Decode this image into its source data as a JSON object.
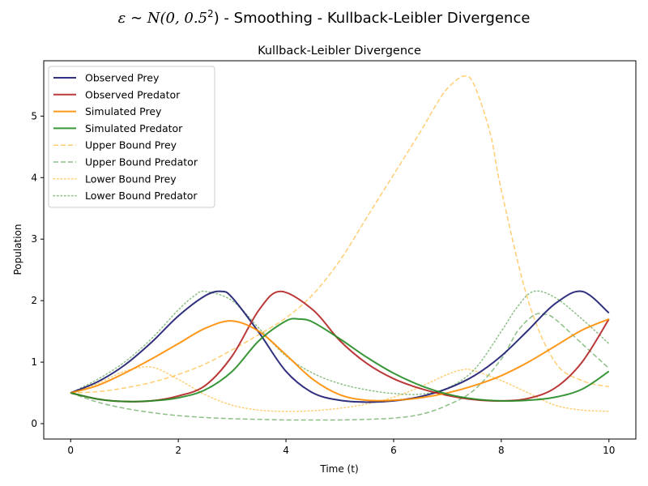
{
  "figure": {
    "suptitle_math": "ε ∼ N(0, 0.5",
    "suptitle_sup": "2",
    "suptitle_rest": ") - Smoothing - Kullback-Leibler Divergence"
  },
  "chart_data": {
    "type": "line",
    "title": "Kullback-Leibler Divergence",
    "xlabel": "Time (t)",
    "ylabel": "Population",
    "xlim": [
      -0.5,
      10.5
    ],
    "ylim": [
      -0.25,
      5.9
    ],
    "xticks": [
      0,
      2,
      4,
      6,
      8,
      10
    ],
    "yticks": [
      0,
      1,
      2,
      3,
      4,
      5
    ],
    "grid": false,
    "legend_position": "upper-left",
    "series": [
      {
        "name": "Observed Prey",
        "color": "#191970",
        "dash": "solid",
        "width": 2,
        "x": [
          0,
          0.5,
          1,
          1.5,
          2,
          2.5,
          2.8,
          3,
          3.5,
          4,
          4.5,
          5,
          5.5,
          6,
          6.5,
          7,
          7.5,
          8,
          8.5,
          9,
          9.5,
          10
        ],
        "y": [
          0.5,
          0.68,
          0.95,
          1.32,
          1.75,
          2.08,
          2.15,
          2.05,
          1.48,
          0.85,
          0.5,
          0.38,
          0.35,
          0.37,
          0.44,
          0.57,
          0.78,
          1.1,
          1.52,
          1.95,
          2.15,
          1.8
        ]
      },
      {
        "name": "Observed Predator",
        "color": "#B22222",
        "dash": "solid",
        "width": 2,
        "x": [
          0,
          0.5,
          1,
          1.5,
          2,
          2.5,
          3,
          3.5,
          3.9,
          4.5,
          5,
          5.5,
          6,
          6.5,
          7,
          7.5,
          8,
          8.5,
          9,
          9.5,
          10
        ],
        "y": [
          0.5,
          0.4,
          0.36,
          0.37,
          0.45,
          0.62,
          1.1,
          1.85,
          2.15,
          1.85,
          1.35,
          0.98,
          0.73,
          0.57,
          0.46,
          0.39,
          0.37,
          0.41,
          0.58,
          1.0,
          1.7
        ]
      },
      {
        "name": "Simulated Prey",
        "color": "#FF8C00",
        "dash": "solid",
        "width": 2,
        "x": [
          0,
          0.5,
          1,
          1.5,
          2,
          2.5,
          3,
          3.5,
          4,
          4.5,
          5,
          5.5,
          6,
          6.5,
          7,
          7.5,
          8,
          8.5,
          9,
          9.5,
          10
        ],
        "y": [
          0.5,
          0.62,
          0.82,
          1.05,
          1.3,
          1.55,
          1.67,
          1.5,
          1.12,
          0.72,
          0.47,
          0.38,
          0.38,
          0.42,
          0.5,
          0.62,
          0.78,
          1.0,
          1.26,
          1.52,
          1.7
        ]
      },
      {
        "name": "Simulated Predator",
        "color": "#228B22",
        "dash": "solid",
        "width": 2,
        "x": [
          0,
          0.5,
          1,
          1.5,
          2,
          2.5,
          3,
          3.5,
          4,
          4.25,
          4.5,
          5,
          5.5,
          6,
          6.5,
          7,
          7.5,
          8,
          8.5,
          9,
          9.5,
          10
        ],
        "y": [
          0.5,
          0.4,
          0.36,
          0.37,
          0.42,
          0.55,
          0.85,
          1.35,
          1.67,
          1.7,
          1.65,
          1.38,
          1.08,
          0.82,
          0.62,
          0.48,
          0.4,
          0.37,
          0.38,
          0.43,
          0.56,
          0.85
        ]
      },
      {
        "name": "Upper Bound Prey",
        "color": "#FFA500",
        "dash": "dashed",
        "width": 1.5,
        "x": [
          0,
          0.5,
          1,
          1.5,
          2,
          2.5,
          3,
          3.5,
          4,
          4.5,
          5,
          5.5,
          6,
          6.5,
          6.8,
          7,
          7.3,
          7.5,
          7.8,
          8,
          8.5,
          9,
          9.5,
          10
        ],
        "y": [
          0.5,
          0.52,
          0.58,
          0.67,
          0.8,
          0.97,
          1.2,
          1.45,
          1.72,
          2.1,
          2.65,
          3.35,
          4.05,
          4.75,
          5.2,
          5.45,
          5.65,
          5.5,
          4.7,
          3.8,
          2.0,
          1.0,
          0.7,
          0.6
        ]
      },
      {
        "name": "Upper Bound Predator",
        "color": "#2E8B22",
        "dash": "dashed",
        "width": 1.5,
        "x": [
          0,
          0.5,
          1,
          1.5,
          2,
          2.5,
          3,
          3.5,
          4,
          4.5,
          5,
          5.5,
          6,
          6.5,
          7,
          7.5,
          8,
          8.3,
          8.6,
          8.8,
          9,
          9.5,
          10
        ],
        "y": [
          0.5,
          0.35,
          0.25,
          0.18,
          0.13,
          0.1,
          0.08,
          0.07,
          0.06,
          0.06,
          0.06,
          0.07,
          0.09,
          0.15,
          0.3,
          0.55,
          1.05,
          1.5,
          1.76,
          1.78,
          1.7,
          1.3,
          0.9
        ]
      },
      {
        "name": "Lower Bound Prey",
        "color": "#FFA500",
        "dash": "dotted",
        "width": 1.5,
        "x": [
          0,
          0.5,
          1,
          1.5,
          2,
          2.5,
          3,
          3.5,
          4,
          4.5,
          5,
          5.5,
          6,
          6.5,
          7,
          7.3,
          7.5,
          8,
          8.5,
          9,
          9.5,
          10
        ],
        "y": [
          0.5,
          0.65,
          0.85,
          0.92,
          0.72,
          0.47,
          0.3,
          0.22,
          0.2,
          0.21,
          0.25,
          0.32,
          0.43,
          0.6,
          0.8,
          0.88,
          0.86,
          0.7,
          0.5,
          0.3,
          0.22,
          0.2
        ]
      },
      {
        "name": "Lower Bound Predator",
        "color": "#2E8B22",
        "dash": "dotted",
        "width": 1.5,
        "x": [
          0,
          0.5,
          1,
          1.5,
          2,
          2.3,
          2.5,
          3,
          3.5,
          4,
          4.5,
          5,
          5.5,
          6,
          6.5,
          7,
          7.5,
          8,
          8.3,
          8.6,
          9,
          9.5,
          10
        ],
        "y": [
          0.5,
          0.72,
          1.0,
          1.38,
          1.85,
          2.08,
          2.15,
          2.0,
          1.55,
          1.1,
          0.82,
          0.65,
          0.55,
          0.49,
          0.48,
          0.58,
          0.88,
          1.5,
          1.9,
          2.15,
          2.05,
          1.7,
          1.3
        ]
      }
    ]
  }
}
